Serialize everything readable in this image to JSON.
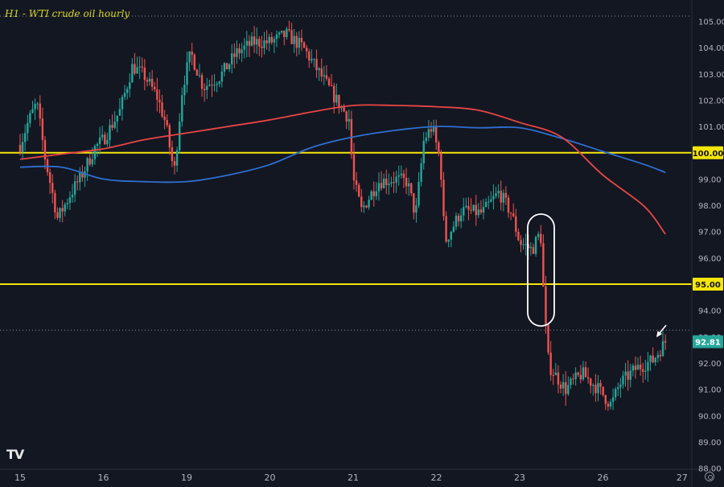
{
  "title": "H1 - WTI crude oil hourly",
  "logo": "TV",
  "colors": {
    "background": "#131722",
    "up": "#26a69a",
    "down": "#ef5350",
    "ma_red": "#e84545",
    "ma_blue": "#2f6fd0",
    "level": "#f5e50a",
    "axis_text": "#b2b5be",
    "annotation": "#ffffff"
  },
  "chart_data": {
    "type": "candlestick",
    "title": "H1 - WTI crude oil hourly",
    "x_ticks": [
      "15",
      "16",
      "19",
      "20",
      "21",
      "22",
      "23",
      "26",
      "27"
    ],
    "y_ticks": [
      88,
      89,
      90,
      91,
      92,
      93,
      94,
      95,
      96,
      97,
      98,
      99,
      100,
      101,
      102,
      103,
      104,
      105
    ],
    "ylim": [
      87.8,
      105.6
    ],
    "price_labels": [
      {
        "value": 100.0,
        "text": "100.00",
        "style": "level"
      },
      {
        "value": 95.0,
        "text": "95.00",
        "style": "level"
      },
      {
        "value": 92.81,
        "text": "92.81",
        "style": "last"
      }
    ],
    "horizontal_levels": [
      100.0,
      95.0
    ],
    "ref_lines": [
      105.2,
      93.25
    ],
    "ma_red": [
      {
        "x": 0.0,
        "y": 99.75
      },
      {
        "x": 0.5,
        "y": 99.95
      },
      {
        "x": 1.0,
        "y": 100.15
      },
      {
        "x": 1.5,
        "y": 100.5
      },
      {
        "x": 2.0,
        "y": 100.75
      },
      {
        "x": 2.5,
        "y": 101.0
      },
      {
        "x": 3.0,
        "y": 101.25
      },
      {
        "x": 3.5,
        "y": 101.55
      },
      {
        "x": 4.0,
        "y": 101.8
      },
      {
        "x": 4.5,
        "y": 101.8
      },
      {
        "x": 5.0,
        "y": 101.75
      },
      {
        "x": 5.5,
        "y": 101.62
      },
      {
        "x": 6.0,
        "y": 101.15
      },
      {
        "x": 6.5,
        "y": 100.6
      },
      {
        "x": 7.0,
        "y": 99.15
      },
      {
        "x": 7.5,
        "y": 97.95
      },
      {
        "x": 7.75,
        "y": 96.9
      }
    ],
    "ma_blue": [
      {
        "x": 0.0,
        "y": 99.45
      },
      {
        "x": 0.5,
        "y": 99.45
      },
      {
        "x": 1.0,
        "y": 99.0
      },
      {
        "x": 1.5,
        "y": 98.9
      },
      {
        "x": 2.0,
        "y": 98.9
      },
      {
        "x": 2.5,
        "y": 99.15
      },
      {
        "x": 3.0,
        "y": 99.55
      },
      {
        "x": 3.5,
        "y": 100.2
      },
      {
        "x": 4.0,
        "y": 100.6
      },
      {
        "x": 4.5,
        "y": 100.85
      },
      {
        "x": 5.0,
        "y": 101.0
      },
      {
        "x": 5.5,
        "y": 100.95
      },
      {
        "x": 6.0,
        "y": 100.95
      },
      {
        "x": 6.5,
        "y": 100.55
      },
      {
        "x": 7.0,
        "y": 100.05
      },
      {
        "x": 7.5,
        "y": 99.55
      },
      {
        "x": 7.75,
        "y": 99.25
      }
    ],
    "path_anchors": [
      {
        "x": 0.0,
        "y": 100.3
      },
      {
        "x": 0.1,
        "y": 101.2
      },
      {
        "x": 0.2,
        "y": 101.9
      },
      {
        "x": 0.3,
        "y": 99.8
      },
      {
        "x": 0.45,
        "y": 97.5
      },
      {
        "x": 0.6,
        "y": 98.4
      },
      {
        "x": 0.75,
        "y": 99.2
      },
      {
        "x": 0.9,
        "y": 100.2
      },
      {
        "x": 1.0,
        "y": 100.5
      },
      {
        "x": 1.2,
        "y": 101.6
      },
      {
        "x": 1.35,
        "y": 103.3
      },
      {
        "x": 1.5,
        "y": 102.9
      },
      {
        "x": 1.65,
        "y": 102.1
      },
      {
        "x": 1.75,
        "y": 101.1
      },
      {
        "x": 1.85,
        "y": 99.2
      },
      {
        "x": 1.95,
        "y": 102.5
      },
      {
        "x": 2.05,
        "y": 103.8
      },
      {
        "x": 2.2,
        "y": 102.5
      },
      {
        "x": 2.4,
        "y": 102.9
      },
      {
        "x": 2.6,
        "y": 103.8
      },
      {
        "x": 2.8,
        "y": 104.2
      },
      {
        "x": 3.0,
        "y": 104.2
      },
      {
        "x": 3.2,
        "y": 104.5
      },
      {
        "x": 3.4,
        "y": 104.0
      },
      {
        "x": 3.6,
        "y": 103.0
      },
      {
        "x": 3.8,
        "y": 102.0
      },
      {
        "x": 3.95,
        "y": 101.3
      },
      {
        "x": 4.0,
        "y": 99.0
      },
      {
        "x": 4.1,
        "y": 97.8
      },
      {
        "x": 4.3,
        "y": 98.9
      },
      {
        "x": 4.5,
        "y": 99.0
      },
      {
        "x": 4.65,
        "y": 98.9
      },
      {
        "x": 4.75,
        "y": 97.6
      },
      {
        "x": 4.85,
        "y": 100.5
      },
      {
        "x": 4.95,
        "y": 101.0
      },
      {
        "x": 5.05,
        "y": 99.6
      },
      {
        "x": 5.1,
        "y": 96.6
      },
      {
        "x": 5.3,
        "y": 97.8
      },
      {
        "x": 5.55,
        "y": 97.7
      },
      {
        "x": 5.75,
        "y": 98.5
      },
      {
        "x": 5.9,
        "y": 97.7
      },
      {
        "x": 6.0,
        "y": 96.6
      },
      {
        "x": 6.15,
        "y": 96.3
      },
      {
        "x": 6.25,
        "y": 97.0
      },
      {
        "x": 6.3,
        "y": 93.8
      },
      {
        "x": 6.35,
        "y": 91.9
      },
      {
        "x": 6.55,
        "y": 91.0
      },
      {
        "x": 6.75,
        "y": 91.6
      },
      {
        "x": 6.95,
        "y": 91.0
      },
      {
        "x": 7.1,
        "y": 90.4
      },
      {
        "x": 7.2,
        "y": 91.2
      },
      {
        "x": 7.4,
        "y": 91.8
      },
      {
        "x": 7.6,
        "y": 92.1
      },
      {
        "x": 7.75,
        "y": 92.81
      }
    ]
  }
}
